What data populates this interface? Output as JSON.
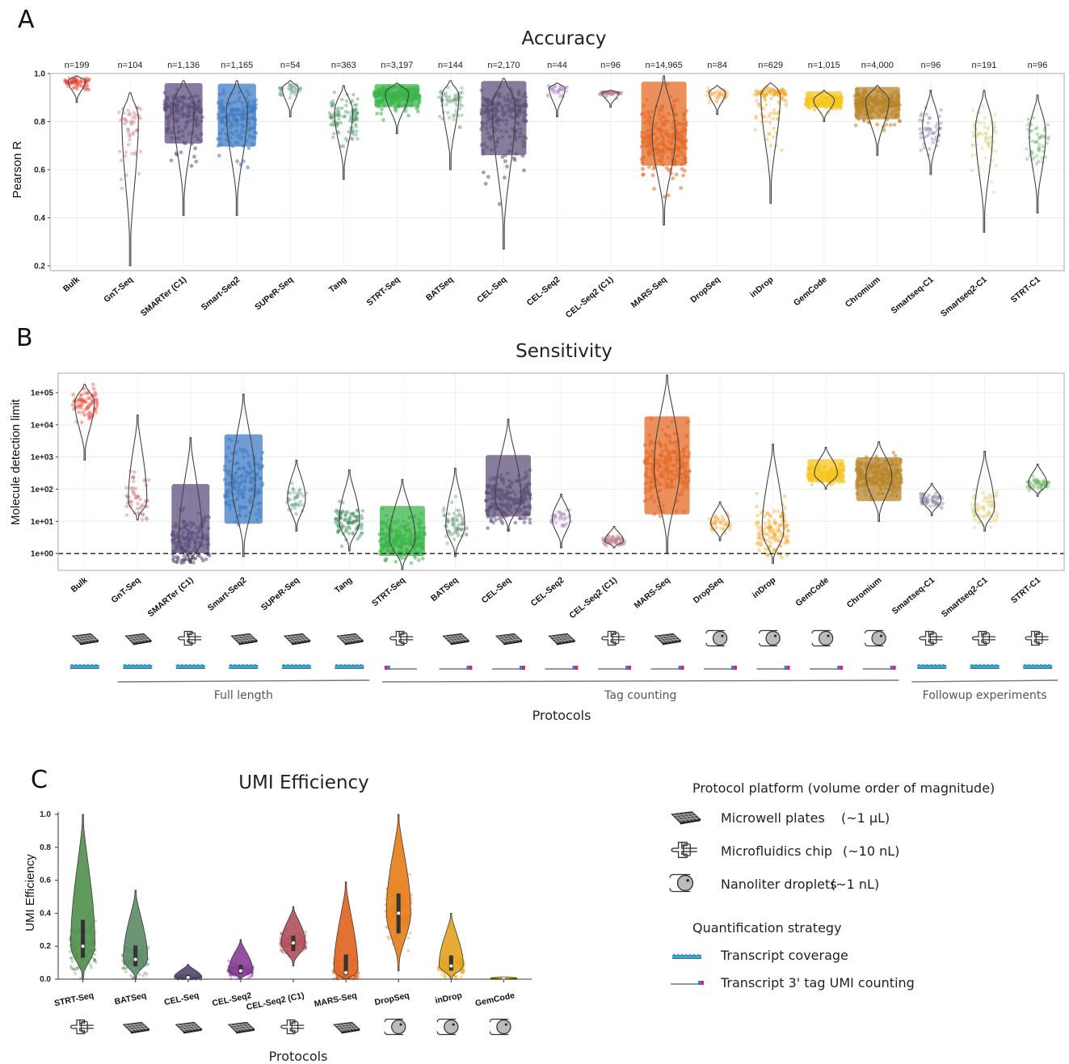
{
  "panels": {
    "a": {
      "letter": "A",
      "title": "Accuracy",
      "ylabel": "Pearson R"
    },
    "b": {
      "letter": "B",
      "title": "Sensitivity",
      "ylabel": "Molecule detection limit",
      "xlabel": "Protocols"
    },
    "c": {
      "letter": "C",
      "title": "UMI Efficiency",
      "ylabel": "UMI Efficiency",
      "xlabel": "Protocols"
    }
  },
  "groups": [
    {
      "label": "Full length",
      "from": 1,
      "to": 5
    },
    {
      "label": "Tag counting",
      "from": 6,
      "to": 15
    },
    {
      "label": "Followup experiments",
      "from": 16,
      "to": 18
    }
  ],
  "legend": {
    "platform_title": "Protocol platform (volume order of magnitude)",
    "platforms": [
      {
        "icon": "plate",
        "label": "Microwell plates",
        "volume": "(~1 µL)"
      },
      {
        "icon": "chip",
        "label": "Microfluidics chip",
        "volume": "(~10 nL)"
      },
      {
        "icon": "drop",
        "label": "Nanoliter droplets",
        "volume": "(~1 nL)"
      }
    ],
    "strategy_title": "Quantification strategy",
    "strategies": [
      {
        "icon": "coverage",
        "label": "Transcript coverage"
      },
      {
        "icon": "tag",
        "label": "Transcript 3' tag UMI counting"
      }
    ]
  },
  "chart_data": [
    {
      "type": "scatter",
      "title": "Accuracy",
      "ylabel": "Pearson R",
      "ylim": [
        0.18,
        1.0
      ],
      "yticks": [
        "0.2",
        "0.4",
        "0.6",
        "0.8",
        "1.0"
      ],
      "grid": true,
      "categories": [
        "Bulk",
        "GnT-Seq",
        "SMARTer (C1)",
        "Smart-Seq2",
        "SUPeR-Seq",
        "Tang",
        "STRT-Seq",
        "BATSeq",
        "CEL-Seq",
        "CEL-Seq2",
        "CEL-Seq2 (C1)",
        "MARS-Seq",
        "DropSeq",
        "inDrop",
        "GemCode",
        "Chromium",
        "Smartseq-C1",
        "Smartseq2-C1",
        "STRT-C1"
      ],
      "n_labels": [
        "n=199",
        "n=104",
        "n=1,136",
        "n=1,165",
        "n=54",
        "n=363",
        "n=3,197",
        "n=144",
        "n=2,170",
        "n=44",
        "n=96",
        "n=14,965",
        "n=84",
        "n=629",
        "n=1,015",
        "n=4,000",
        "n=96",
        "n=191",
        "n=96"
      ],
      "colors": [
        "#e8412e",
        "#c9737a",
        "#5e4f7e",
        "#3f7bc4",
        "#6ba58d",
        "#3c8f5a",
        "#3bb54a",
        "#6a9a74",
        "#5f5178",
        "#a98bc6",
        "#b87a86",
        "#e46a25",
        "#f3b04f",
        "#f6a623",
        "#f7c51f",
        "#b8862a",
        "#8a80a8",
        "#ddcf7c",
        "#6cb56a"
      ],
      "medians": [
        0.97,
        0.82,
        0.87,
        0.85,
        0.94,
        0.84,
        0.92,
        0.91,
        0.87,
        0.94,
        0.92,
        0.75,
        0.92,
        0.92,
        0.89,
        0.89,
        0.78,
        0.77,
        0.75
      ],
      "mins": [
        0.88,
        0.2,
        0.41,
        0.41,
        0.82,
        0.56,
        0.75,
        0.6,
        0.27,
        0.82,
        0.86,
        0.37,
        0.83,
        0.46,
        0.8,
        0.66,
        0.58,
        0.34,
        0.42
      ],
      "maxs": [
        0.99,
        0.92,
        0.97,
        0.97,
        0.97,
        0.95,
        0.96,
        0.97,
        0.98,
        0.96,
        0.93,
        0.99,
        0.95,
        0.96,
        0.93,
        0.95,
        0.93,
        0.93,
        0.91
      ]
    },
    {
      "type": "scatter",
      "title": "Sensitivity",
      "ylabel": "Molecule detection limit",
      "xlabel": "Protocols",
      "yscale": "log",
      "ylim": [
        0.3,
        400000
      ],
      "yticks": [
        "1e+00",
        "1e+01",
        "1e+02",
        "1e+03",
        "1e+04",
        "1e+05"
      ],
      "reference_line": 1,
      "grid": true,
      "categories": [
        "Bulk",
        "GnT-Seq",
        "SMARTer (C1)",
        "Smart-Seq2",
        "SUPeR-Seq",
        "Tang",
        "STRT-Seq",
        "BATSeq",
        "CEL-Seq",
        "CEL-Seq2",
        "CEL-Seq2 (C1)",
        "MARS-Seq",
        "DropSeq",
        "inDrop",
        "GemCode",
        "Chromium",
        "Smartseq-C1",
        "Smartseq2-C1",
        "STRT-C1"
      ],
      "colors": [
        "#e8412e",
        "#c9737a",
        "#5e4f7e",
        "#3f7bc4",
        "#6ba58d",
        "#3c8f5a",
        "#3bb54a",
        "#6a9a74",
        "#5f5178",
        "#a98bc6",
        "#b87a86",
        "#e46a25",
        "#f3b04f",
        "#f6a623",
        "#f7c51f",
        "#b8862a",
        "#8a80a8",
        "#ddcf7c",
        "#6cb56a"
      ],
      "medians": [
        50000,
        40,
        2.5,
        150,
        50,
        10,
        3,
        7,
        50,
        12,
        2.5,
        500,
        9,
        5,
        300,
        250,
        45,
        25,
        150
      ],
      "mins": [
        800,
        11,
        0.5,
        0.8,
        5,
        1.2,
        0.3,
        0.8,
        5,
        1.5,
        1.5,
        1,
        2.5,
        0.5,
        100,
        10,
        15,
        5,
        60
      ],
      "maxs": [
        180000,
        20000,
        4000,
        90000,
        800,
        400,
        200,
        450,
        15000,
        70,
        7,
        350000,
        40,
        2500,
        2000,
        3000,
        150,
        1500,
        600
      ],
      "platforms": [
        "plate",
        "plate",
        "chip",
        "plate",
        "plate",
        "plate",
        "chip",
        "plate",
        "plate",
        "plate",
        "chip",
        "plate",
        "drop",
        "drop",
        "drop",
        "drop",
        "chip",
        "chip",
        "chip"
      ],
      "strategies": [
        "coverage",
        "coverage",
        "coverage",
        "coverage",
        "coverage",
        "coverage",
        "tag",
        "tag",
        "tag",
        "tag",
        "tag",
        "tag",
        "tag",
        "tag",
        "tag",
        "tag",
        "coverage",
        "coverage",
        "coverage"
      ]
    },
    {
      "type": "scatter",
      "title": "UMI Efficiency",
      "ylabel": "UMI Efficiency",
      "xlabel": "Protocols",
      "ylim": [
        0.0,
        1.0
      ],
      "yticks": [
        "0.0",
        "0.2",
        "0.4",
        "0.6",
        "0.8",
        "1.0"
      ],
      "grid": false,
      "categories": [
        "STRT-Seq",
        "BATSeq",
        "CEL-Seq",
        "CEL-Seq2",
        "CEL-Seq2 (C1)",
        "MARS-Seq",
        "DropSeq",
        "inDrop",
        "GemCode"
      ],
      "colors": [
        "#4f8f4b",
        "#5c8a66",
        "#54466f",
        "#8a3d97",
        "#b0505c",
        "#e0621e",
        "#e57c16",
        "#e3a21e",
        "#e8c21b"
      ],
      "medians": [
        0.2,
        0.12,
        0.01,
        0.05,
        0.22,
        0.04,
        0.4,
        0.08,
        0.005
      ],
      "mins": [
        0.0,
        0.0,
        0.0,
        0.0,
        0.08,
        0.0,
        0.05,
        0.0,
        0.0
      ],
      "maxs": [
        1.0,
        0.54,
        0.09,
        0.24,
        0.44,
        0.59,
        1.0,
        0.4,
        0.015
      ],
      "platforms": [
        "chip",
        "plate",
        "plate",
        "plate",
        "chip",
        "plate",
        "drop",
        "drop",
        "drop"
      ]
    }
  ]
}
